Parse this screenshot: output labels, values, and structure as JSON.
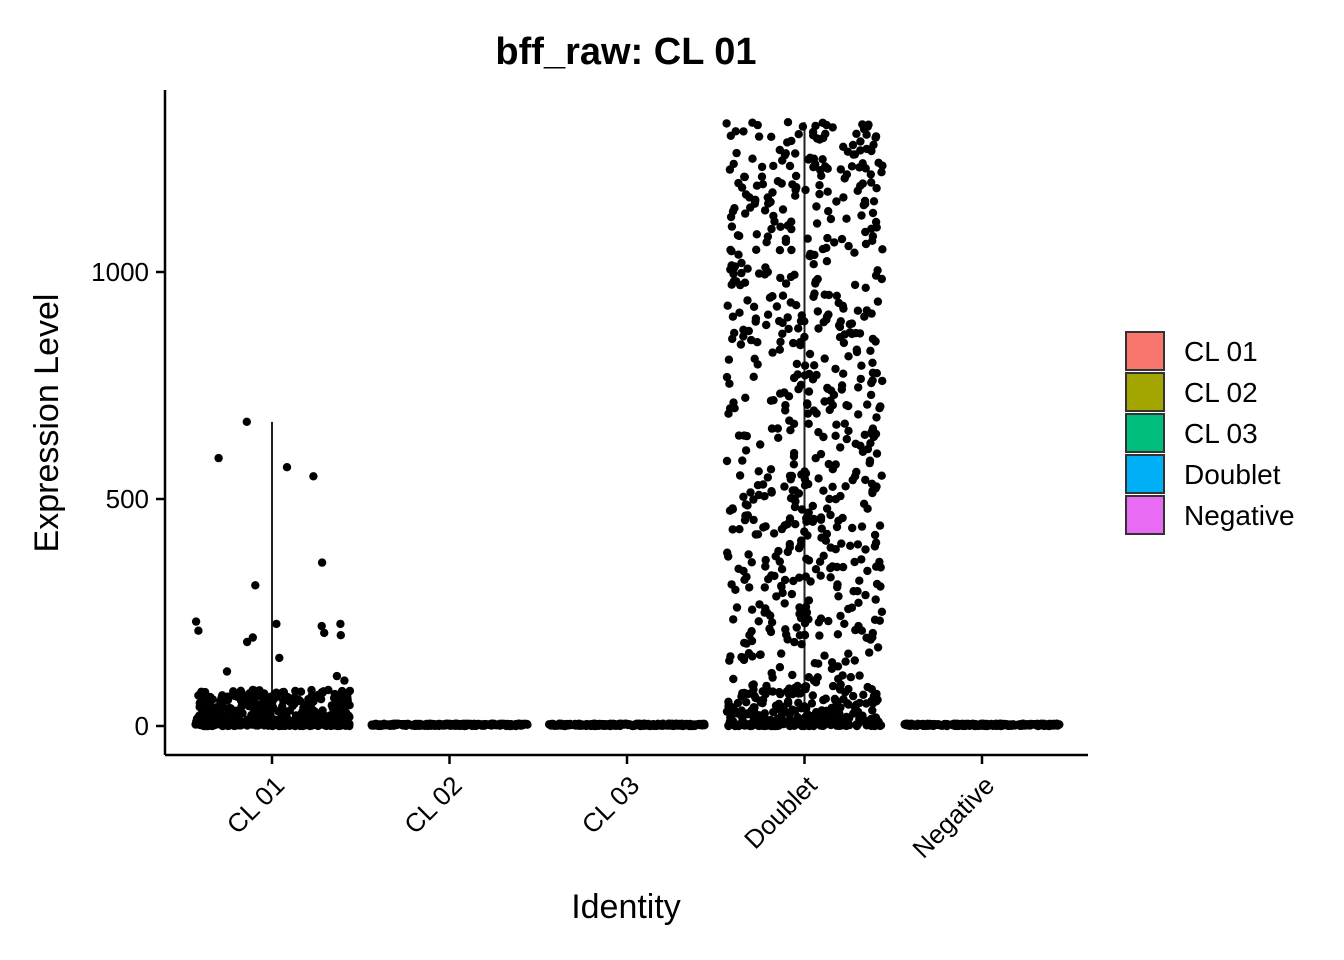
{
  "chart_data": {
    "type": "scatter",
    "subtype": "violin-jitter",
    "title": "bff_raw: CL 01",
    "xlabel": "Identity",
    "ylabel": "Expression Level",
    "categories": [
      "CL 01",
      "CL 02",
      "CL 03",
      "Doublet",
      "Negative"
    ],
    "ylim": [
      -65,
      1335
    ],
    "yticks": [
      0,
      500,
      1000
    ],
    "grid": false,
    "legend_position": "right",
    "series": [
      {
        "category": "CL 01",
        "color": "#F8766D",
        "value_range": [
          0,
          670
        ],
        "median": 15,
        "typical_range": [
          0,
          80
        ],
        "notable_points": [
          670,
          590,
          570,
          550,
          360,
          310,
          230,
          225,
          225,
          220,
          210,
          205,
          200,
          195,
          185,
          150,
          120,
          110,
          100
        ]
      },
      {
        "category": "CL 02",
        "color": "#A3A500",
        "value_range": [
          0,
          5
        ],
        "median": 0,
        "typical_range": [
          0,
          5
        ],
        "notable_points": []
      },
      {
        "category": "CL 03",
        "color": "#00BF7D",
        "value_range": [
          0,
          5
        ],
        "median": 0,
        "typical_range": [
          0,
          5
        ],
        "notable_points": []
      },
      {
        "category": "Doublet",
        "color": "#00B0F6",
        "value_range": [
          0,
          1330
        ],
        "median": 5,
        "typical_range": [
          0,
          1330
        ],
        "notable_points": [
          1330,
          1320,
          1310,
          1300,
          1280,
          1250,
          1200,
          1150,
          1100,
          1050,
          1000,
          950,
          900,
          850,
          800,
          750,
          700,
          650,
          600,
          550,
          500,
          450,
          400,
          350,
          300,
          250,
          200,
          150,
          100
        ]
      },
      {
        "category": "Negative",
        "color": "#E76BF3",
        "value_range": [
          0,
          5
        ],
        "median": 0,
        "typical_range": [
          0,
          5
        ],
        "notable_points": []
      }
    ],
    "legend": {
      "title": "",
      "entries": [
        {
          "label": "CL 01",
          "color": "#F8766D"
        },
        {
          "label": "CL 02",
          "color": "#A3A500"
        },
        {
          "label": "CL 03",
          "color": "#00BF7D"
        },
        {
          "label": "Doublet",
          "color": "#00B0F6"
        },
        {
          "label": "Negative",
          "color": "#E76BF3"
        }
      ]
    }
  }
}
